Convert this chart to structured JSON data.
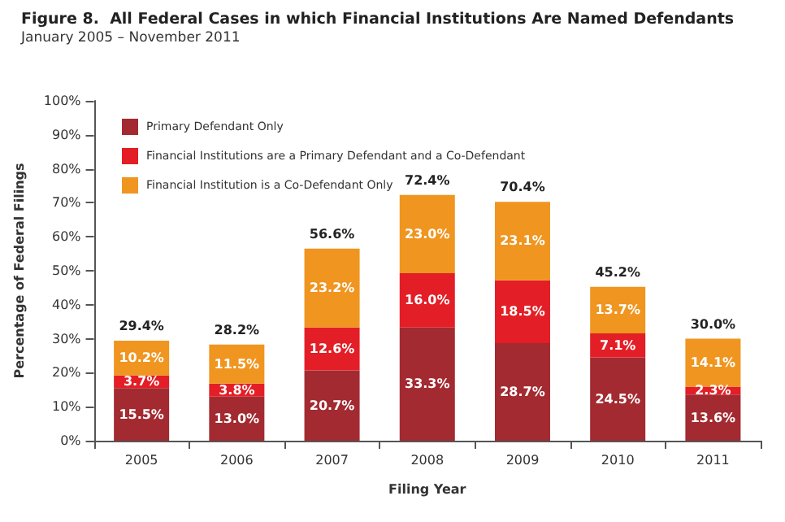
{
  "chart_data": {
    "type": "bar",
    "title": "Figure 8.  All Federal Cases in which Financial Institutions Are Named Defendants",
    "subtitle": "January 2005 – November 2011",
    "xlabel": "Filing Year",
    "ylabel": "Percentage of Federal Filings",
    "categories": [
      "2005",
      "2006",
      "2007",
      "2008",
      "2009",
      "2010",
      "2011"
    ],
    "stacked": true,
    "series": [
      {
        "name": "Primary Defendant Only",
        "color": "#a32a30",
        "values": [
          15.5,
          13.0,
          20.7,
          33.3,
          28.7,
          24.5,
          13.6
        ],
        "value_labels": [
          "15.5%",
          "13.0%",
          "20.7%",
          "33.3%",
          "28.7%",
          "24.5%",
          "13.6%"
        ]
      },
      {
        "name": "Financial Institutions are a Primary Defendant and a Co-Defendant",
        "color": "#e31e26",
        "values": [
          3.7,
          3.8,
          12.6,
          16.0,
          18.5,
          7.1,
          2.3
        ],
        "value_labels": [
          "3.7%",
          "3.8%",
          "12.6%",
          "16.0%",
          "18.5%",
          "7.1%",
          "2.3%"
        ]
      },
      {
        "name": "Financial Institution is a Co-Defendant Only",
        "color": "#f0951f",
        "values": [
          10.2,
          11.5,
          23.2,
          23.0,
          23.1,
          13.7,
          14.1
        ],
        "value_labels": [
          "10.2%",
          "11.5%",
          "23.2%",
          "23.0%",
          "23.1%",
          "13.7%",
          "14.1%"
        ]
      }
    ],
    "totals": [
      "29.4%",
      "28.2%",
      "56.6%",
      "72.4%",
      "70.4%",
      "45.2%",
      "30.0%"
    ],
    "ylim": [
      0,
      100
    ],
    "yticks": [
      {
        "value": 0,
        "label": "0%"
      },
      {
        "value": 10,
        "label": "10%"
      },
      {
        "value": 20,
        "label": "20%"
      },
      {
        "value": 30,
        "label": "30%"
      },
      {
        "value": 40,
        "label": "40%"
      },
      {
        "value": 50,
        "label": "50%"
      },
      {
        "value": 60,
        "label": "60%"
      },
      {
        "value": 70,
        "label": "70%"
      },
      {
        "value": 80,
        "label": "80%"
      },
      {
        "value": 90,
        "label": "90%"
      },
      {
        "value": 100,
        "label": "100%"
      }
    ],
    "grid": false,
    "legend": "top left"
  }
}
